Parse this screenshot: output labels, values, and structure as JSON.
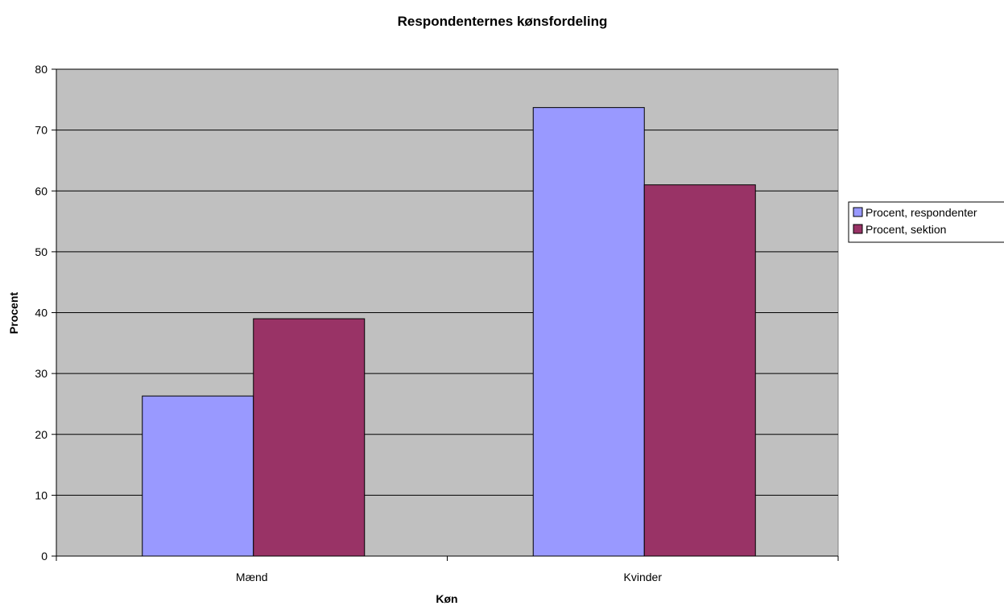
{
  "chart_data": {
    "type": "bar",
    "title": "Respondenternes kønsfordeling",
    "xlabel": "Køn",
    "ylabel": "Procent",
    "categories": [
      "Mænd",
      "Kvinder"
    ],
    "series": [
      {
        "name": "Procent, respondenter",
        "color": "#9999ff",
        "values": [
          26.3,
          73.7
        ]
      },
      {
        "name": "Procent, sektion",
        "color": "#993366",
        "values": [
          39,
          61
        ]
      }
    ],
    "ylim": [
      0,
      80
    ],
    "yticks": [
      0,
      10,
      20,
      30,
      40,
      50,
      60,
      70,
      80
    ],
    "grid": true,
    "plot_background": "#c0c0c0",
    "legend_position": "right"
  }
}
